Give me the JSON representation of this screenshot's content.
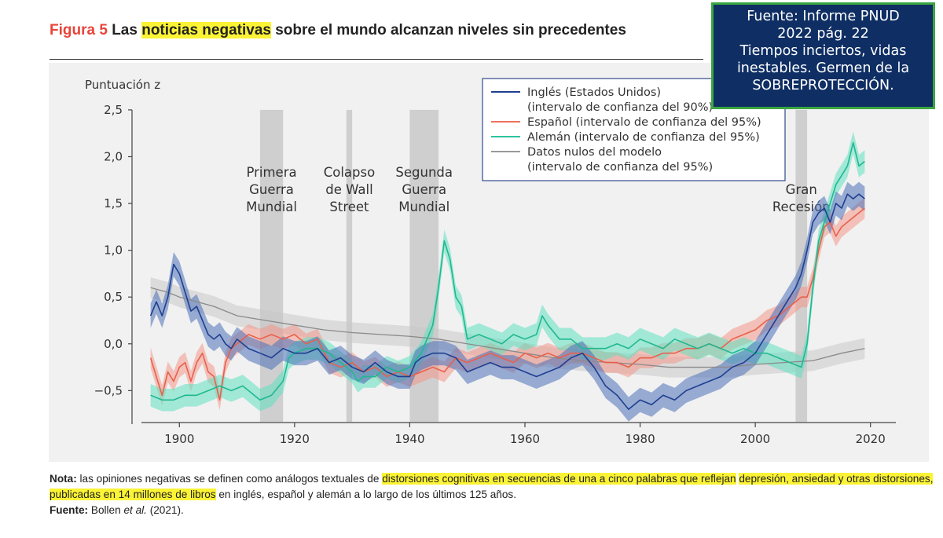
{
  "header": {
    "figure_label": "Figura 5",
    "title_pre": "Las",
    "title_highlight": "noticias negativas",
    "title_post": "sobre el mundo alcanzan niveles sin precedentes"
  },
  "callout": {
    "lines": [
      "Fuente: Informe PNUD",
      "2022 pág. 22",
      "Tiempos inciertos, vidas",
      "inestables. Germen de la",
      "SOBREPROTECCIÓN."
    ]
  },
  "chart_data": {
    "type": "line",
    "ylabel": "Puntuación z",
    "xlim": [
      1890,
      2024
    ],
    "ylim": [
      -0.9,
      2.6
    ],
    "x_ticks": [
      1900,
      1920,
      1940,
      1960,
      1980,
      2000,
      2020
    ],
    "y_ticks": [
      2.5,
      2.0,
      1.5,
      1.0,
      0.5,
      0.0,
      -0.5
    ],
    "y_tick_labels": [
      "2,5",
      "2,0",
      "1,5",
      "1,0",
      "0,5",
      "0,0",
      "−0,5"
    ],
    "events": [
      {
        "label": [
          "Primera",
          "Guerra",
          "Mundial"
        ],
        "start": 1914,
        "end": 1918
      },
      {
        "label": [
          "Colapso",
          "de Wall",
          "Street"
        ],
        "start": 1929,
        "end": 1930
      },
      {
        "label": [
          "Segunda",
          "Guerra",
          "Mundial"
        ],
        "start": 1940,
        "end": 1945
      },
      {
        "label": [
          "Gran",
          "Recesión"
        ],
        "start": 2007,
        "end": 2009
      }
    ],
    "legend": {
      "placement": "top-right",
      "entries": [
        {
          "text": [
            "Inglés (Estados Unidos)",
            "(intervalo de confianza del 90%)"
          ],
          "color": "#1f3f8f"
        },
        {
          "text": [
            "Español (intervalo de confianza del 95%)"
          ],
          "color": "#f07060"
        },
        {
          "text": [
            "Alemán (intervalo de confianza del 95%)"
          ],
          "color": "#2cc49c"
        },
        {
          "text": [
            "Datos nulos del modelo",
            "(intervalo de confianza del 95%)"
          ],
          "color": "#999999"
        }
      ]
    },
    "series": [
      {
        "name": "Inglés (Estados Unidos)",
        "color": "#1f3f8f",
        "band": "#4a6fb8",
        "band_width": 0.13,
        "points": [
          [
            1895,
            0.3
          ],
          [
            1896,
            0.45
          ],
          [
            1897,
            0.3
          ],
          [
            1898,
            0.5
          ],
          [
            1899,
            0.85
          ],
          [
            1900,
            0.75
          ],
          [
            1901,
            0.55
          ],
          [
            1902,
            0.35
          ],
          [
            1903,
            0.4
          ],
          [
            1904,
            0.25
          ],
          [
            1905,
            0.1
          ],
          [
            1906,
            0.05
          ],
          [
            1907,
            0.1
          ],
          [
            1908,
            0.0
          ],
          [
            1909,
            -0.05
          ],
          [
            1910,
            0.05
          ],
          [
            1912,
            -0.05
          ],
          [
            1914,
            -0.1
          ],
          [
            1916,
            -0.15
          ],
          [
            1918,
            -0.05
          ],
          [
            1920,
            -0.1
          ],
          [
            1922,
            -0.1
          ],
          [
            1924,
            -0.05
          ],
          [
            1926,
            -0.2
          ],
          [
            1928,
            -0.15
          ],
          [
            1930,
            -0.25
          ],
          [
            1932,
            -0.3
          ],
          [
            1934,
            -0.2
          ],
          [
            1936,
            -0.3
          ],
          [
            1938,
            -0.35
          ],
          [
            1940,
            -0.35
          ],
          [
            1941,
            -0.2
          ],
          [
            1942,
            -0.15
          ],
          [
            1944,
            -0.1
          ],
          [
            1946,
            -0.1
          ],
          [
            1948,
            -0.15
          ],
          [
            1950,
            -0.3
          ],
          [
            1952,
            -0.25
          ],
          [
            1954,
            -0.2
          ],
          [
            1956,
            -0.25
          ],
          [
            1958,
            -0.25
          ],
          [
            1960,
            -0.3
          ],
          [
            1962,
            -0.35
          ],
          [
            1964,
            -0.3
          ],
          [
            1966,
            -0.25
          ],
          [
            1968,
            -0.15
          ],
          [
            1970,
            -0.1
          ],
          [
            1972,
            -0.25
          ],
          [
            1974,
            -0.45
          ],
          [
            1976,
            -0.55
          ],
          [
            1978,
            -0.7
          ],
          [
            1980,
            -0.6
          ],
          [
            1982,
            -0.65
          ],
          [
            1984,
            -0.55
          ],
          [
            1986,
            -0.6
          ],
          [
            1988,
            -0.5
          ],
          [
            1990,
            -0.45
          ],
          [
            1992,
            -0.4
          ],
          [
            1994,
            -0.35
          ],
          [
            1996,
            -0.25
          ],
          [
            1998,
            -0.2
          ],
          [
            2000,
            -0.1
          ],
          [
            2002,
            0.1
          ],
          [
            2004,
            0.3
          ],
          [
            2006,
            0.5
          ],
          [
            2007,
            0.6
          ],
          [
            2008,
            0.75
          ],
          [
            2009,
            1.0
          ],
          [
            2010,
            1.3
          ],
          [
            2011,
            1.4
          ],
          [
            2012,
            1.45
          ],
          [
            2013,
            1.3
          ],
          [
            2014,
            1.5
          ],
          [
            2015,
            1.45
          ],
          [
            2016,
            1.6
          ],
          [
            2017,
            1.55
          ],
          [
            2018,
            1.6
          ],
          [
            2019,
            1.55
          ]
        ]
      },
      {
        "name": "Español (intervalo de confianza del 95%)",
        "color": "#e8604c",
        "band": "#f39888",
        "band_width": 0.11,
        "points": [
          [
            1895,
            -0.15
          ],
          [
            1896,
            -0.35
          ],
          [
            1897,
            -0.55
          ],
          [
            1898,
            -0.3
          ],
          [
            1899,
            -0.4
          ],
          [
            1900,
            -0.25
          ],
          [
            1901,
            -0.2
          ],
          [
            1902,
            -0.4
          ],
          [
            1903,
            -0.2
          ],
          [
            1904,
            -0.1
          ],
          [
            1905,
            -0.3
          ],
          [
            1906,
            -0.35
          ],
          [
            1907,
            -0.6
          ],
          [
            1908,
            -0.2
          ],
          [
            1909,
            -0.05
          ],
          [
            1910,
            0.0
          ],
          [
            1912,
            0.1
          ],
          [
            1914,
            0.05
          ],
          [
            1916,
            0.1
          ],
          [
            1918,
            0.05
          ],
          [
            1920,
            0.1
          ],
          [
            1922,
            0.0
          ],
          [
            1924,
            0.05
          ],
          [
            1926,
            -0.2
          ],
          [
            1928,
            -0.25
          ],
          [
            1930,
            -0.2
          ],
          [
            1932,
            -0.3
          ],
          [
            1934,
            -0.25
          ],
          [
            1936,
            -0.35
          ],
          [
            1938,
            -0.3
          ],
          [
            1940,
            -0.35
          ],
          [
            1942,
            -0.3
          ],
          [
            1944,
            -0.25
          ],
          [
            1946,
            -0.3
          ],
          [
            1948,
            -0.15
          ],
          [
            1950,
            -0.2
          ],
          [
            1952,
            -0.15
          ],
          [
            1954,
            -0.1
          ],
          [
            1956,
            -0.15
          ],
          [
            1958,
            -0.2
          ],
          [
            1960,
            -0.1
          ],
          [
            1962,
            -0.15
          ],
          [
            1964,
            -0.1
          ],
          [
            1966,
            -0.15
          ],
          [
            1968,
            -0.1
          ],
          [
            1970,
            -0.1
          ],
          [
            1972,
            -0.15
          ],
          [
            1974,
            -0.2
          ],
          [
            1976,
            -0.2
          ],
          [
            1978,
            -0.25
          ],
          [
            1980,
            -0.15
          ],
          [
            1982,
            -0.15
          ],
          [
            1984,
            -0.1
          ],
          [
            1986,
            -0.1
          ],
          [
            1988,
            -0.05
          ],
          [
            1990,
            -0.05
          ],
          [
            1992,
            0.0
          ],
          [
            1994,
            -0.05
          ],
          [
            1996,
            0.05
          ],
          [
            1998,
            0.1
          ],
          [
            2000,
            0.15
          ],
          [
            2002,
            0.25
          ],
          [
            2004,
            0.3
          ],
          [
            2006,
            0.4
          ],
          [
            2007,
            0.45
          ],
          [
            2008,
            0.5
          ],
          [
            2009,
            0.5
          ],
          [
            2010,
            0.7
          ],
          [
            2011,
            1.0
          ],
          [
            2012,
            1.25
          ],
          [
            2013,
            1.3
          ],
          [
            2014,
            1.15
          ],
          [
            2015,
            1.25
          ],
          [
            2016,
            1.3
          ],
          [
            2017,
            1.35
          ],
          [
            2018,
            1.4
          ],
          [
            2019,
            1.45
          ]
        ]
      },
      {
        "name": "Alemán (intervalo de confianza del 95%)",
        "color": "#20b890",
        "band": "#5fe0c0",
        "band_width": 0.12,
        "points": [
          [
            1895,
            -0.55
          ],
          [
            1897,
            -0.6
          ],
          [
            1899,
            -0.6
          ],
          [
            1901,
            -0.55
          ],
          [
            1903,
            -0.55
          ],
          [
            1905,
            -0.5
          ],
          [
            1907,
            -0.45
          ],
          [
            1909,
            -0.5
          ],
          [
            1911,
            -0.45
          ],
          [
            1913,
            -0.55
          ],
          [
            1914,
            -0.6
          ],
          [
            1916,
            -0.55
          ],
          [
            1918,
            -0.4
          ],
          [
            1919,
            -0.15
          ],
          [
            1920,
            -0.1
          ],
          [
            1922,
            -0.05
          ],
          [
            1924,
            -0.05
          ],
          [
            1926,
            -0.1
          ],
          [
            1928,
            -0.2
          ],
          [
            1930,
            -0.3
          ],
          [
            1931,
            -0.4
          ],
          [
            1932,
            -0.35
          ],
          [
            1934,
            -0.35
          ],
          [
            1936,
            -0.25
          ],
          [
            1938,
            -0.3
          ],
          [
            1940,
            -0.25
          ],
          [
            1942,
            -0.1
          ],
          [
            1944,
            0.2
          ],
          [
            1945,
            0.6
          ],
          [
            1946,
            1.1
          ],
          [
            1947,
            0.9
          ],
          [
            1948,
            0.5
          ],
          [
            1949,
            0.4
          ],
          [
            1950,
            0.05
          ],
          [
            1952,
            0.1
          ],
          [
            1954,
            0.05
          ],
          [
            1956,
            0.0
          ],
          [
            1958,
            0.1
          ],
          [
            1960,
            0.05
          ],
          [
            1962,
            0.1
          ],
          [
            1963,
            0.3
          ],
          [
            1964,
            0.2
          ],
          [
            1966,
            0.05
          ],
          [
            1968,
            0.05
          ],
          [
            1970,
            -0.05
          ],
          [
            1972,
            -0.05
          ],
          [
            1974,
            -0.05
          ],
          [
            1976,
            0.0
          ],
          [
            1978,
            -0.05
          ],
          [
            1980,
            0.05
          ],
          [
            1982,
            0.0
          ],
          [
            1984,
            -0.05
          ],
          [
            1986,
            0.05
          ],
          [
            1988,
            0.0
          ],
          [
            1990,
            -0.05
          ],
          [
            1992,
            0.0
          ],
          [
            1994,
            -0.05
          ],
          [
            1996,
            -0.1
          ],
          [
            1998,
            -0.05
          ],
          [
            2000,
            -0.1
          ],
          [
            2002,
            -0.1
          ],
          [
            2004,
            -0.15
          ],
          [
            2006,
            -0.2
          ],
          [
            2008,
            -0.25
          ],
          [
            2009,
            0.0
          ],
          [
            2010,
            0.6
          ],
          [
            2011,
            1.1
          ],
          [
            2012,
            1.3
          ],
          [
            2013,
            1.5
          ],
          [
            2014,
            1.7
          ],
          [
            2015,
            1.8
          ],
          [
            2016,
            1.9
          ],
          [
            2017,
            2.15
          ],
          [
            2018,
            1.9
          ],
          [
            2019,
            1.95
          ]
        ]
      },
      {
        "name": "Datos nulos del modelo",
        "color": "#8a8a8a",
        "band": "#c9c9c9",
        "band_width": 0.11,
        "points": [
          [
            1895,
            0.6
          ],
          [
            1898,
            0.55
          ],
          [
            1900,
            0.5
          ],
          [
            1903,
            0.45
          ],
          [
            1906,
            0.4
          ],
          [
            1910,
            0.3
          ],
          [
            1915,
            0.25
          ],
          [
            1920,
            0.2
          ],
          [
            1925,
            0.15
          ],
          [
            1930,
            0.12
          ],
          [
            1935,
            0.1
          ],
          [
            1940,
            0.08
          ],
          [
            1945,
            0.05
          ],
          [
            1950,
            0.0
          ],
          [
            1955,
            -0.05
          ],
          [
            1960,
            -0.1
          ],
          [
            1965,
            -0.15
          ],
          [
            1970,
            -0.18
          ],
          [
            1975,
            -0.2
          ],
          [
            1980,
            -0.22
          ],
          [
            1985,
            -0.25
          ],
          [
            1990,
            -0.25
          ],
          [
            1995,
            -0.25
          ],
          [
            2000,
            -0.22
          ],
          [
            2005,
            -0.2
          ],
          [
            2010,
            -0.18
          ],
          [
            2015,
            -0.1
          ],
          [
            2019,
            -0.05
          ]
        ]
      }
    ]
  },
  "note": {
    "label": "Nota:",
    "text_pre": "las opiniones negativas se definen como análogos textuales de",
    "text_hl1": "distorsiones cognitivas en secuencias de una a cinco palabras que reflejan",
    "text_hl2": "depresión, ansiedad y otras distorsiones, publicadas en 14 millones de libros",
    "text_post": "en inglés, español y alemán a lo largo de los últimos 125 años.",
    "source_label": "Fuente:",
    "source_author": "Bollen",
    "source_etal": "et al.",
    "source_year": "(2021)."
  }
}
